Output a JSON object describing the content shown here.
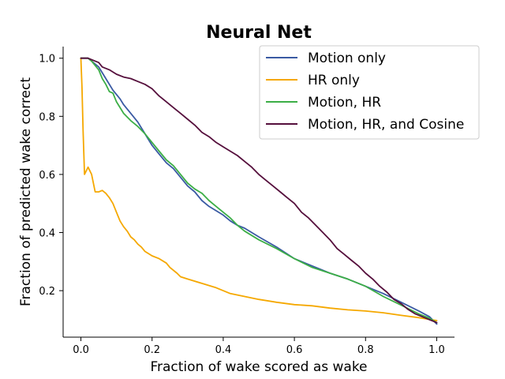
{
  "chart_data": {
    "type": "line",
    "title": "Neural Net",
    "xlabel": "Fraction of wake scored as wake",
    "ylabel": "Fraction of predicted wake correct",
    "xlim": [
      -0.05,
      1.05
    ],
    "ylim": [
      0.04,
      1.04
    ],
    "xticks": [
      0.0,
      0.2,
      0.4,
      0.6,
      0.8,
      1.0
    ],
    "yticks": [
      0.2,
      0.4,
      0.6,
      0.8,
      1.0
    ],
    "xtick_labels": [
      "0.0",
      "0.2",
      "0.4",
      "0.6",
      "0.8",
      "1.0"
    ],
    "ytick_labels": [
      "0.2",
      "0.4",
      "0.6",
      "0.8",
      "1.0"
    ],
    "grid": false,
    "legend_position": "top-right",
    "series": [
      {
        "name": "Motion only",
        "color": "#3a5aa3",
        "points": [
          [
            0.0,
            1.0
          ],
          [
            0.02,
            1.0
          ],
          [
            0.03,
            0.99
          ],
          [
            0.05,
            0.97
          ],
          [
            0.07,
            0.93
          ],
          [
            0.09,
            0.89
          ],
          [
            0.11,
            0.86
          ],
          [
            0.12,
            0.84
          ],
          [
            0.14,
            0.81
          ],
          [
            0.16,
            0.78
          ],
          [
            0.18,
            0.74
          ],
          [
            0.2,
            0.7
          ],
          [
            0.22,
            0.67
          ],
          [
            0.24,
            0.64
          ],
          [
            0.26,
            0.62
          ],
          [
            0.28,
            0.59
          ],
          [
            0.3,
            0.56
          ],
          [
            0.32,
            0.54
          ],
          [
            0.34,
            0.51
          ],
          [
            0.36,
            0.49
          ],
          [
            0.38,
            0.475
          ],
          [
            0.4,
            0.46
          ],
          [
            0.42,
            0.44
          ],
          [
            0.44,
            0.425
          ],
          [
            0.46,
            0.415
          ],
          [
            0.48,
            0.4
          ],
          [
            0.5,
            0.385
          ],
          [
            0.55,
            0.35
          ],
          [
            0.6,
            0.31
          ],
          [
            0.65,
            0.285
          ],
          [
            0.7,
            0.26
          ],
          [
            0.75,
            0.24
          ],
          [
            0.8,
            0.215
          ],
          [
            0.85,
            0.19
          ],
          [
            0.9,
            0.16
          ],
          [
            0.95,
            0.13
          ],
          [
            0.98,
            0.11
          ],
          [
            1.0,
            0.085
          ]
        ]
      },
      {
        "name": "HR only",
        "color": "#f5a800",
        "points": [
          [
            0.0,
            1.0
          ],
          [
            0.003,
            0.9
          ],
          [
            0.006,
            0.75
          ],
          [
            0.01,
            0.6
          ],
          [
            0.02,
            0.625
          ],
          [
            0.03,
            0.6
          ],
          [
            0.04,
            0.54
          ],
          [
            0.05,
            0.54
          ],
          [
            0.06,
            0.545
          ],
          [
            0.07,
            0.535
          ],
          [
            0.08,
            0.52
          ],
          [
            0.09,
            0.5
          ],
          [
            0.1,
            0.47
          ],
          [
            0.11,
            0.44
          ],
          [
            0.12,
            0.42
          ],
          [
            0.13,
            0.405
          ],
          [
            0.14,
            0.385
          ],
          [
            0.15,
            0.375
          ],
          [
            0.16,
            0.36
          ],
          [
            0.17,
            0.35
          ],
          [
            0.18,
            0.335
          ],
          [
            0.2,
            0.32
          ],
          [
            0.22,
            0.31
          ],
          [
            0.24,
            0.295
          ],
          [
            0.25,
            0.28
          ],
          [
            0.27,
            0.26
          ],
          [
            0.28,
            0.248
          ],
          [
            0.3,
            0.24
          ],
          [
            0.34,
            0.225
          ],
          [
            0.38,
            0.21
          ],
          [
            0.42,
            0.19
          ],
          [
            0.46,
            0.18
          ],
          [
            0.5,
            0.17
          ],
          [
            0.55,
            0.16
          ],
          [
            0.6,
            0.152
          ],
          [
            0.65,
            0.148
          ],
          [
            0.7,
            0.14
          ],
          [
            0.75,
            0.134
          ],
          [
            0.8,
            0.13
          ],
          [
            0.85,
            0.124
          ],
          [
            0.9,
            0.115
          ],
          [
            0.95,
            0.107
          ],
          [
            1.0,
            0.097
          ]
        ]
      },
      {
        "name": "Motion, HR",
        "color": "#3cae46",
        "points": [
          [
            0.0,
            1.0
          ],
          [
            0.02,
            1.0
          ],
          [
            0.03,
            0.99
          ],
          [
            0.05,
            0.96
          ],
          [
            0.06,
            0.93
          ],
          [
            0.07,
            0.91
          ],
          [
            0.08,
            0.885
          ],
          [
            0.09,
            0.88
          ],
          [
            0.1,
            0.85
          ],
          [
            0.12,
            0.81
          ],
          [
            0.14,
            0.785
          ],
          [
            0.16,
            0.765
          ],
          [
            0.18,
            0.74
          ],
          [
            0.2,
            0.71
          ],
          [
            0.22,
            0.68
          ],
          [
            0.24,
            0.65
          ],
          [
            0.26,
            0.63
          ],
          [
            0.28,
            0.6
          ],
          [
            0.3,
            0.57
          ],
          [
            0.32,
            0.55
          ],
          [
            0.34,
            0.535
          ],
          [
            0.36,
            0.51
          ],
          [
            0.38,
            0.49
          ],
          [
            0.4,
            0.47
          ],
          [
            0.42,
            0.45
          ],
          [
            0.44,
            0.425
          ],
          [
            0.46,
            0.405
          ],
          [
            0.48,
            0.39
          ],
          [
            0.5,
            0.375
          ],
          [
            0.55,
            0.345
          ],
          [
            0.6,
            0.31
          ],
          [
            0.65,
            0.28
          ],
          [
            0.7,
            0.26
          ],
          [
            0.75,
            0.24
          ],
          [
            0.8,
            0.215
          ],
          [
            0.85,
            0.18
          ],
          [
            0.9,
            0.15
          ],
          [
            0.95,
            0.12
          ],
          [
            0.98,
            0.105
          ],
          [
            1.0,
            0.09
          ]
        ]
      },
      {
        "name": "Motion, HR, and Cosine",
        "color": "#550f3c",
        "points": [
          [
            0.0,
            1.0
          ],
          [
            0.02,
            1.0
          ],
          [
            0.03,
            0.995
          ],
          [
            0.05,
            0.985
          ],
          [
            0.06,
            0.97
          ],
          [
            0.08,
            0.96
          ],
          [
            0.1,
            0.945
          ],
          [
            0.12,
            0.935
          ],
          [
            0.14,
            0.93
          ],
          [
            0.16,
            0.92
          ],
          [
            0.18,
            0.91
          ],
          [
            0.2,
            0.895
          ],
          [
            0.22,
            0.87
          ],
          [
            0.24,
            0.85
          ],
          [
            0.26,
            0.83
          ],
          [
            0.28,
            0.81
          ],
          [
            0.3,
            0.79
          ],
          [
            0.32,
            0.77
          ],
          [
            0.34,
            0.745
          ],
          [
            0.36,
            0.73
          ],
          [
            0.38,
            0.71
          ],
          [
            0.4,
            0.695
          ],
          [
            0.42,
            0.68
          ],
          [
            0.44,
            0.665
          ],
          [
            0.46,
            0.645
          ],
          [
            0.48,
            0.625
          ],
          [
            0.5,
            0.6
          ],
          [
            0.52,
            0.58
          ],
          [
            0.54,
            0.56
          ],
          [
            0.56,
            0.54
          ],
          [
            0.58,
            0.52
          ],
          [
            0.6,
            0.5
          ],
          [
            0.62,
            0.47
          ],
          [
            0.64,
            0.45
          ],
          [
            0.66,
            0.425
          ],
          [
            0.68,
            0.4
          ],
          [
            0.7,
            0.375
          ],
          [
            0.72,
            0.345
          ],
          [
            0.74,
            0.325
          ],
          [
            0.76,
            0.305
          ],
          [
            0.78,
            0.285
          ],
          [
            0.8,
            0.26
          ],
          [
            0.82,
            0.24
          ],
          [
            0.84,
            0.215
          ],
          [
            0.86,
            0.195
          ],
          [
            0.88,
            0.17
          ],
          [
            0.9,
            0.155
          ],
          [
            0.92,
            0.135
          ],
          [
            0.94,
            0.12
          ],
          [
            0.96,
            0.11
          ],
          [
            0.98,
            0.1
          ],
          [
            1.0,
            0.09
          ]
        ]
      }
    ]
  }
}
